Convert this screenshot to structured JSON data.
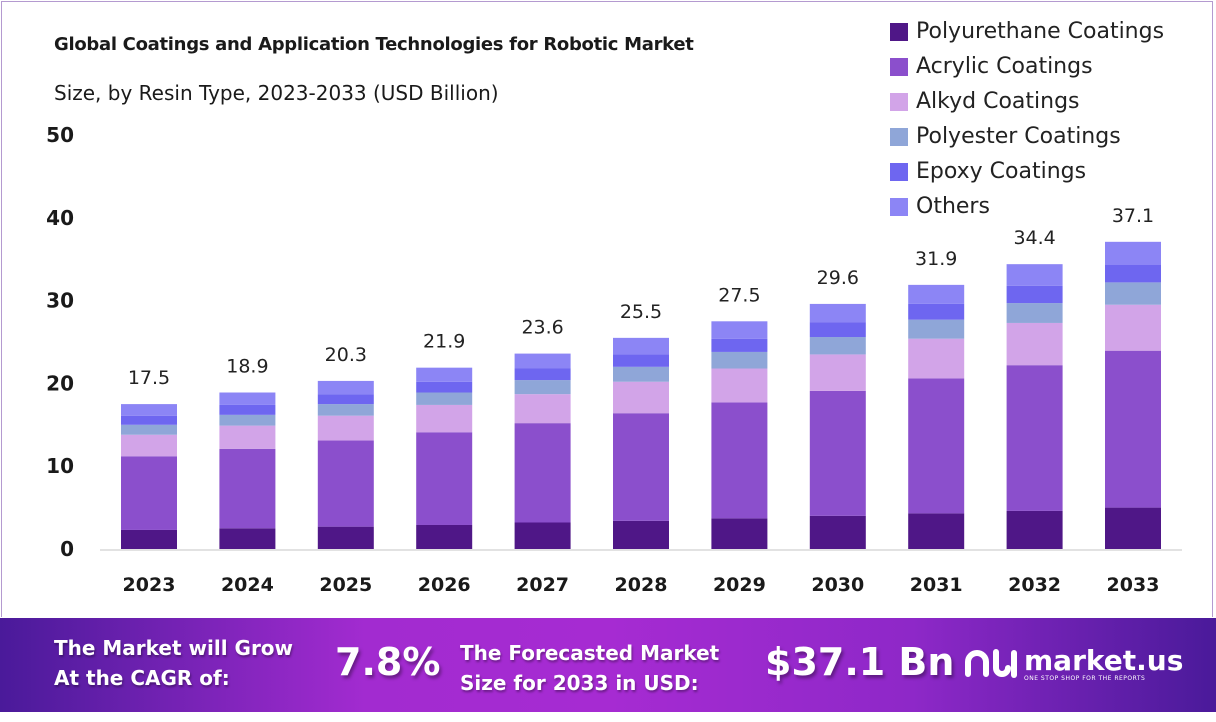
{
  "chart_data": {
    "type": "bar",
    "stacked": true,
    "title": "Global Coatings and Application Technologies for Robotic Market",
    "subtitle": "Size, by Resin Type, 2023-2033 (USD Billion)",
    "categories": [
      "2023",
      "2024",
      "2025",
      "2026",
      "2027",
      "2028",
      "2029",
      "2030",
      "2031",
      "2032",
      "2033"
    ],
    "ylim": [
      0,
      50
    ],
    "yticks": [
      0,
      10,
      20,
      30,
      40,
      50
    ],
    "grid": false,
    "legend_position": "top-right",
    "totals": [
      "17.5",
      "18.9",
      "20.3",
      "21.9",
      "23.6",
      "25.5",
      "27.5",
      "29.6",
      "31.9",
      "34.4",
      "37.1"
    ],
    "series": [
      {
        "name": "Polyurethane Coatings",
        "color": "#4f1787",
        "values": [
          2.3,
          2.5,
          2.7,
          2.9,
          3.2,
          3.4,
          3.7,
          4.0,
          4.3,
          4.6,
          5.0
        ]
      },
      {
        "name": "Acrylic Coatings",
        "color": "#8b4fcc",
        "values": [
          8.9,
          9.6,
          10.4,
          11.2,
          12.0,
          13.0,
          14.0,
          15.1,
          16.3,
          17.6,
          18.95
        ]
      },
      {
        "name": "Alkyd Coatings",
        "color": "#d2a4e8",
        "values": [
          2.6,
          2.8,
          3.0,
          3.3,
          3.5,
          3.8,
          4.1,
          4.4,
          4.8,
          5.1,
          5.55
        ]
      },
      {
        "name": "Polyester Coatings",
        "color": "#8fa6d8",
        "values": [
          1.2,
          1.3,
          1.4,
          1.5,
          1.7,
          1.8,
          2.0,
          2.1,
          2.3,
          2.4,
          2.7
        ]
      },
      {
        "name": "Epoxy Coatings",
        "color": "#6e66f0",
        "values": [
          1.1,
          1.2,
          1.2,
          1.3,
          1.4,
          1.5,
          1.6,
          1.8,
          1.9,
          2.1,
          2.1
        ]
      },
      {
        "name": "Others",
        "color": "#8c85f5",
        "values": [
          1.4,
          1.5,
          1.6,
          1.7,
          1.8,
          2.0,
          2.1,
          2.2,
          2.3,
          2.6,
          2.8
        ]
      }
    ]
  },
  "banner": {
    "cagr_label_1": "The Market will Grow",
    "cagr_label_2": "At the CAGR of:",
    "cagr_value": "7.8%",
    "forecast_label_1": "The Forecasted Market",
    "forecast_label_2": "Size for 2033 in USD:",
    "forecast_value": "$37.1 Bn",
    "logo_text": "market.us",
    "logo_tagline": "ONE STOP SHOP FOR THE REPORTS"
  }
}
